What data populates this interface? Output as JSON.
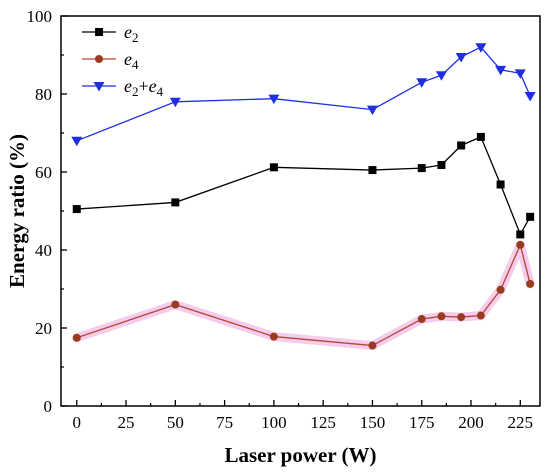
{
  "chart_data": {
    "type": "line",
    "xlabel": "Laser power (W)",
    "ylabel": "Energy ratio (%)",
    "xlim": [
      -8,
      235
    ],
    "ylim": [
      0,
      100
    ],
    "x_ticks": [
      0,
      25,
      50,
      75,
      100,
      125,
      150,
      175,
      200,
      225
    ],
    "y_ticks": [
      0,
      20,
      40,
      60,
      80,
      100
    ],
    "legend_position": "top-left",
    "grid": false,
    "series": [
      {
        "name": "e2",
        "name_base": "e",
        "name_sub": "2",
        "marker": "square",
        "line_color": "#000000",
        "marker_color": "#000000",
        "x": [
          0,
          50,
          100,
          150,
          175,
          185,
          195,
          205,
          215,
          225,
          230
        ],
        "values": [
          50.5,
          52.2,
          61.2,
          60.5,
          61.0,
          61.8,
          66.8,
          69.0,
          56.8,
          44.0,
          48.5
        ]
      },
      {
        "name": "e4",
        "name_base": "e",
        "name_sub": "4",
        "marker": "circle",
        "line_color": "#b5473a",
        "marker_color": "#9a3a1e",
        "highlight_color": "#f4c6e9",
        "x": [
          0,
          50,
          100,
          150,
          175,
          185,
          195,
          205,
          215,
          225,
          230
        ],
        "values": [
          17.5,
          26.0,
          17.8,
          15.5,
          22.3,
          23.0,
          22.8,
          23.2,
          29.8,
          41.3,
          31.3
        ]
      },
      {
        "name": "e2+e4",
        "name_base": "e",
        "name_sub": "2",
        "name_plus": "+",
        "name_base2": "e",
        "name_sub2": "4",
        "marker": "triangle-down",
        "line_color": "#1f2fe0",
        "marker_color": "#1f2fe0",
        "x": [
          0,
          50,
          100,
          150,
          175,
          185,
          195,
          205,
          215,
          225,
          230
        ],
        "values": [
          68.0,
          78.0,
          78.8,
          76.0,
          83.0,
          84.8,
          89.5,
          92.0,
          86.2,
          85.3,
          79.5
        ]
      }
    ]
  }
}
